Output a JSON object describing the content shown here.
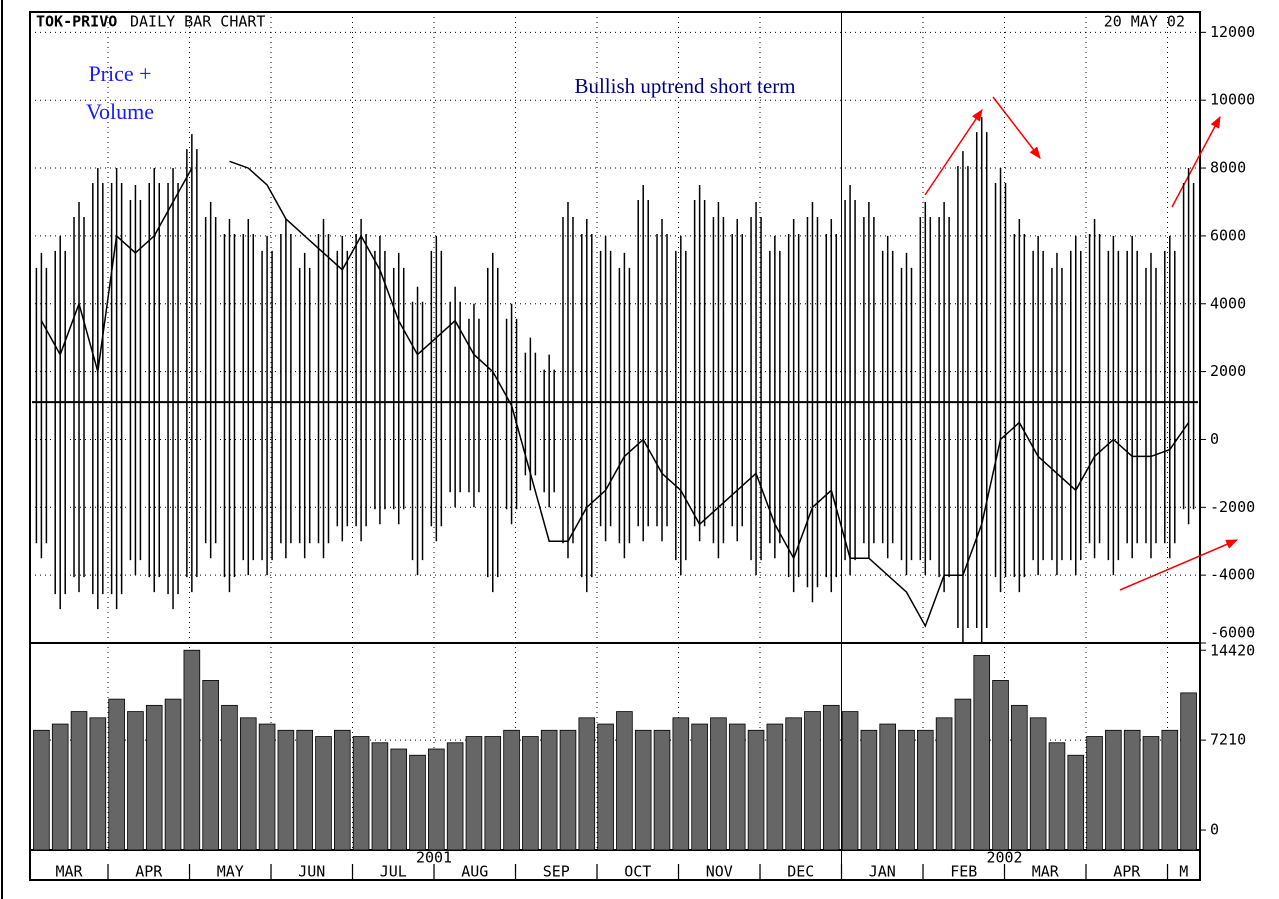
{
  "chart_data": {
    "type": "line",
    "title_symbol": "TOK-PRIVO",
    "title": "DAILY BAR CHART",
    "date": "20 MAY 02",
    "annotations": [
      [
        "Price +",
        "Volume"
      ],
      "Bullish uptrend short term"
    ],
    "months": [
      "MAR",
      "APR",
      "MAY",
      "JUN",
      "JUL",
      "AUG",
      "SEP",
      "OCT",
      "NOV",
      "DEC",
      "JAN",
      "FEB",
      "MAR",
      "APR",
      "M"
    ],
    "years": [
      "2001",
      "2002"
    ],
    "ylim": [
      -6000,
      12600
    ],
    "yticks": [
      -6000,
      -4000,
      -2000,
      0,
      2000,
      4000,
      6000,
      8000,
      10000,
      12000
    ],
    "grid": true,
    "price": {
      "color": "#000000",
      "values": [
        3500,
        2500,
        4000,
        2000,
        6000,
        5500,
        6000,
        7000,
        8000,
        null,
        8200,
        8000,
        7500,
        6500,
        6000,
        5500,
        5000,
        6000,
        5000,
        3500,
        2500,
        3000,
        3500,
        2500,
        2000,
        1000,
        -1000,
        -3000,
        -3000,
        -2000,
        -1500,
        -500,
        0,
        -1000,
        -1500,
        -2500,
        -2000,
        -1500,
        -1000,
        -2500,
        -3500,
        -2000,
        -1500,
        -3500,
        -3500,
        -4000,
        -4500,
        -5500,
        -4000,
        -4000,
        -2500,
        0,
        500,
        -500,
        -1000,
        -1500,
        -500,
        0,
        -500,
        -500,
        -300,
        500
      ]
    },
    "bars": {
      "color": "#000000",
      "baseline": 1100,
      "highs": [
        5500,
        6000,
        7000,
        8000,
        8000,
        7500,
        8000,
        8000,
        9000,
        7000,
        6500,
        6500,
        6000,
        6500,
        5500,
        6500,
        6000,
        6500,
        6000,
        5500,
        4500,
        6000,
        4500,
        4000,
        5500,
        4000,
        3000,
        2500,
        7000,
        6500,
        6000,
        5500,
        7500,
        6500,
        6000,
        7500,
        7000,
        6500,
        7000,
        6000,
        6500,
        7000,
        6500,
        7500,
        7000,
        6000,
        5500,
        7000,
        7000,
        8500,
        9500,
        8000,
        6500,
        6000,
        5500,
        6000,
        6500,
        6000,
        6000,
        5500,
        6000,
        8000
      ],
      "lows": [
        -3500,
        -5000,
        -4500,
        -5000,
        -5000,
        -4000,
        -4500,
        -5000,
        -4500,
        -3500,
        -4500,
        -4000,
        -4000,
        -3500,
        -3500,
        -3500,
        -3000,
        -3000,
        -2500,
        -2500,
        -4000,
        -3000,
        -2000,
        -2000,
        -4500,
        -2500,
        -1500,
        -2000,
        -3500,
        -4500,
        -3000,
        -3500,
        -3000,
        -3000,
        -4000,
        -3000,
        -3500,
        -3000,
        -4000,
        -3500,
        -4500,
        -4800,
        -4500,
        -4000,
        -3500,
        -3500,
        -4000,
        -4000,
        -4500,
        -6000,
        -6000,
        -4500,
        -4500,
        -4000,
        -4000,
        -4000,
        -3500,
        -4000,
        -3500,
        -3500,
        -3500,
        -2500
      ]
    },
    "volume": {
      "color": "#666666",
      "ylim": [
        -1600,
        15000
      ],
      "yticks": [
        0,
        7210,
        14420
      ],
      "values": [
        8000,
        8500,
        9500,
        9000,
        10500,
        9500,
        10000,
        10500,
        14420,
        12000,
        10000,
        9000,
        8500,
        8000,
        8000,
        7500,
        8000,
        7500,
        7000,
        6500,
        6000,
        6500,
        7000,
        7500,
        7500,
        8000,
        7500,
        8000,
        8000,
        9000,
        8500,
        9500,
        8000,
        8000,
        9000,
        8500,
        9000,
        8500,
        8000,
        8500,
        9000,
        9500,
        10000,
        9500,
        8000,
        8500,
        8000,
        8000,
        9000,
        10500,
        14000,
        12000,
        10000,
        9000,
        7000,
        6000,
        7500,
        8000,
        8000,
        7500,
        8000,
        11000
      ]
    }
  }
}
